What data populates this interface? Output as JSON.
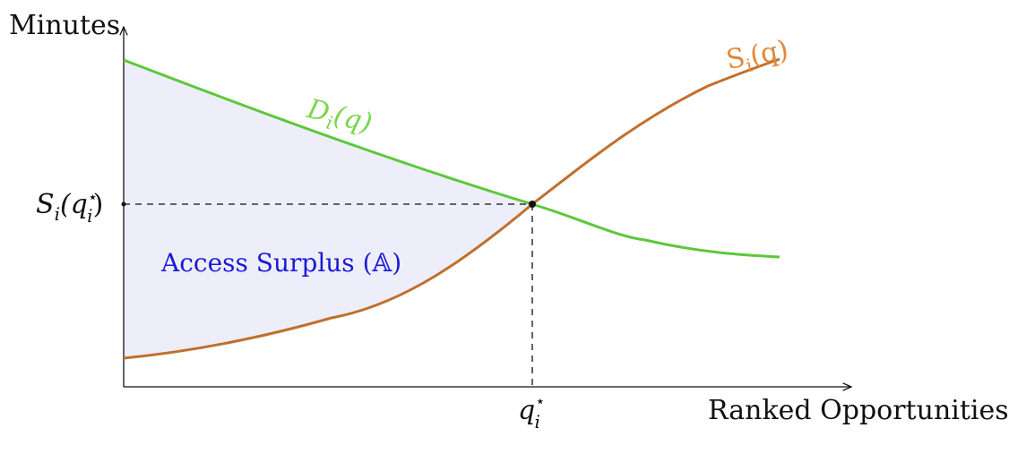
{
  "axes": {
    "y_title": "Minutes",
    "x_title": "Ranked Opportunities"
  },
  "ticks": {
    "y_equilibrium_label_main": "S",
    "y_equilibrium_label_sub": "i",
    "y_equilibrium_label_paren": "(q",
    "y_equilibrium_label_star": "⋆",
    "y_equilibrium_label_close": ")",
    "x_equilibrium_label_main": "q",
    "x_equilibrium_label_sub": "i",
    "x_equilibrium_label_star": "⋆"
  },
  "curves": {
    "demand_label_main": "D",
    "demand_label_sub": "i",
    "demand_label_arg": "(q)",
    "supply_label_main": "S",
    "supply_label_sub": "i",
    "supply_label_arg": "(q)"
  },
  "region": {
    "label": "Access Surplus (𝔸)"
  },
  "colors": {
    "demand": "#5cc83a",
    "supply": "#c0702e",
    "surplus_fill": "#eeeefa",
    "region_text": "#1a1ad6"
  }
}
